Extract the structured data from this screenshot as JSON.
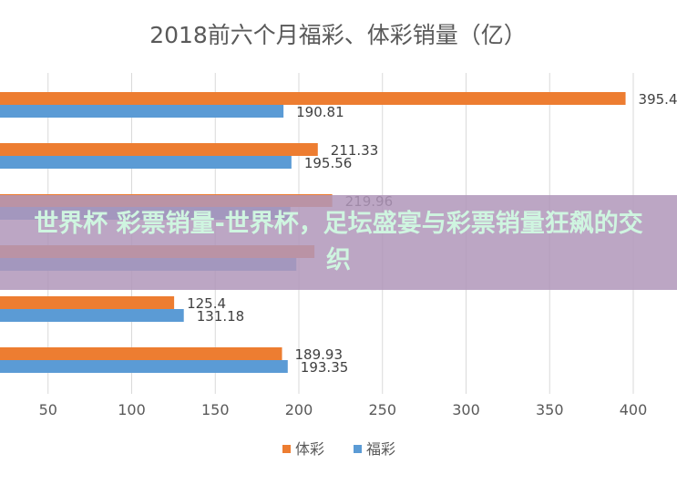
{
  "chart_data": {
    "type": "bar",
    "orientation": "horizontal",
    "title": "2018前六个月福彩、体彩销量（亿）",
    "xlabel": "",
    "ylabel": "",
    "xlim": [
      0,
      400
    ],
    "x_ticks": [
      "50",
      "100",
      "150",
      "200",
      "250",
      "300",
      "350",
      "400"
    ],
    "grid": true,
    "legend_position": "bottom",
    "colors": {
      "体彩": "#ed7d31",
      "福彩": "#5b9bd5"
    },
    "series": [
      {
        "name": "体彩",
        "values": [
          395.4,
          211.33,
          219.96,
          209.31,
          125.4,
          189.93
        ]
      },
      {
        "name": "福彩",
        "values": [
          190.81,
          195.56,
          194.95,
          198.5,
          131.18,
          193.35
        ]
      }
    ],
    "data_labels": [
      [
        "395.4",
        "211.33",
        "219.96",
        "",
        "125.4",
        "189.93"
      ],
      [
        "190.81",
        "195.56",
        "",
        "",
        "131.18",
        "193.35"
      ]
    ]
  },
  "banner": {
    "text": "世界杯 彩票销量-世界杯，足坛盛宴与彩票销量狂飙的交织"
  }
}
